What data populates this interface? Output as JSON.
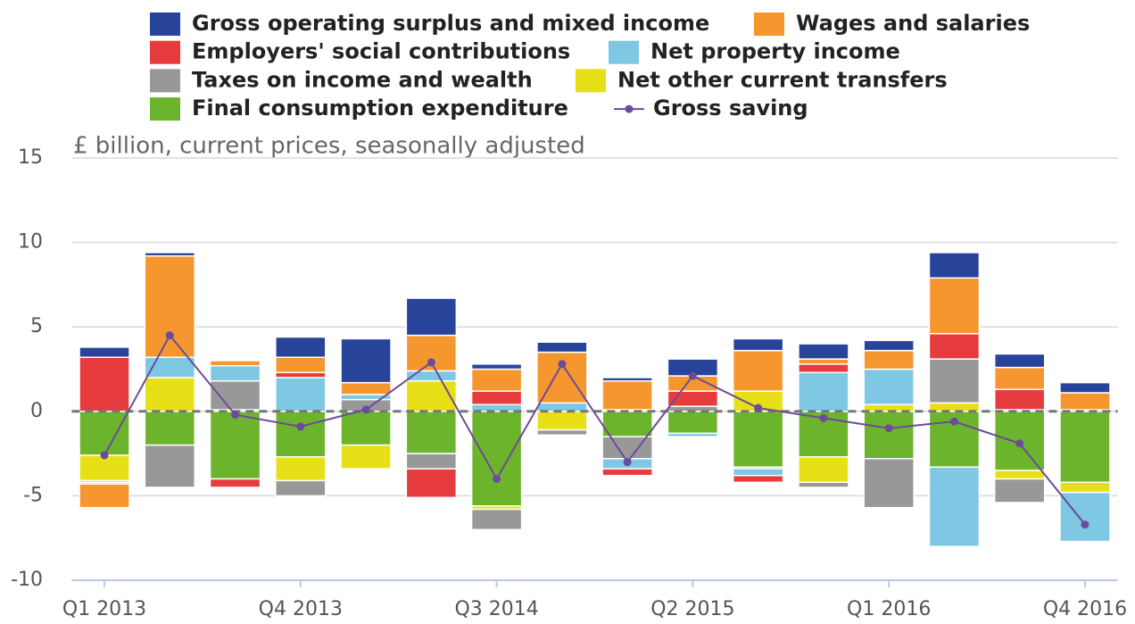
{
  "chart_data": {
    "type": "bar",
    "stacked": true,
    "subtitle": "£ billion, current prices, seasonally adjusted",
    "categories": [
      "Q1 2013",
      null,
      null,
      "Q4 2013",
      null,
      null,
      "Q3 2014",
      null,
      null,
      "Q2 2015",
      null,
      null,
      "Q1 2016",
      null,
      null,
      "Q4 2016"
    ],
    "series": [
      {
        "name": "Gross operating surplus and mixed income",
        "color": "#27449a",
        "values": [
          0.6,
          0.2,
          0,
          1.2,
          2.6,
          2.2,
          0.3,
          0.6,
          0.2,
          1.0,
          0.7,
          0.9,
          0.6,
          1.5,
          0.8,
          0.6
        ]
      },
      {
        "name": "Wages and salaries",
        "color": "#f5962f",
        "values": [
          -1.4,
          6.0,
          0.3,
          0.9,
          0.7,
          2.1,
          1.3,
          3.0,
          1.7,
          0.9,
          2.4,
          0.3,
          1.1,
          3.3,
          1.3,
          1.0
        ]
      },
      {
        "name": "Employers' social contributions",
        "color": "#e73c3e",
        "values": [
          3.2,
          0,
          -0.5,
          0.3,
          0,
          -1.7,
          0.8,
          0,
          -0.4,
          0.9,
          -0.4,
          0.5,
          0,
          1.5,
          1.2,
          0
        ]
      },
      {
        "name": "Net property income",
        "color": "#7ec8e3",
        "values": [
          -0.1,
          1.2,
          0.9,
          2.0,
          0.3,
          0.6,
          0.4,
          0.5,
          -0.6,
          -0.2,
          -0.4,
          2.3,
          2.1,
          -4.7,
          0.1,
          -2.9
        ]
      },
      {
        "name": "Taxes on income and wealth",
        "color": "#989898",
        "values": [
          -0.1,
          -2.5,
          1.7,
          -0.9,
          0.7,
          -0.9,
          -1.2,
          -0.3,
          -1.3,
          0.3,
          -0.1,
          -0.3,
          -2.9,
          2.6,
          -1.4,
          0.1
        ]
      },
      {
        "name": "Net other current transfers",
        "color": "#e8e017",
        "values": [
          -1.5,
          2.0,
          0.1,
          -1.4,
          -1.4,
          1.8,
          -0.2,
          -1.1,
          0.1,
          0,
          1.2,
          -1.5,
          0.4,
          0.5,
          -0.5,
          -0.6
        ]
      },
      {
        "name": "Final consumption expenditure",
        "color": "#6db42d",
        "values": [
          -2.6,
          -2.0,
          -4.0,
          -2.7,
          -2.0,
          -2.5,
          -5.6,
          0,
          -1.5,
          -1.3,
          -3.3,
          -2.7,
          -2.8,
          -3.3,
          -3.5,
          -4.2
        ]
      },
      {
        "name": "Gross saving",
        "color": "#6b4c9a",
        "type": "line",
        "values": [
          -2.6,
          4.5,
          -0.2,
          -0.9,
          0.1,
          2.9,
          -4.0,
          2.8,
          -3.0,
          2.1,
          0.2,
          -0.4,
          -1.0,
          -0.6,
          -1.9,
          -6.7
        ]
      }
    ],
    "ylim": [
      -10,
      15
    ],
    "yticks": [
      -10,
      -5,
      0,
      5,
      10,
      15
    ],
    "grid": true
  }
}
